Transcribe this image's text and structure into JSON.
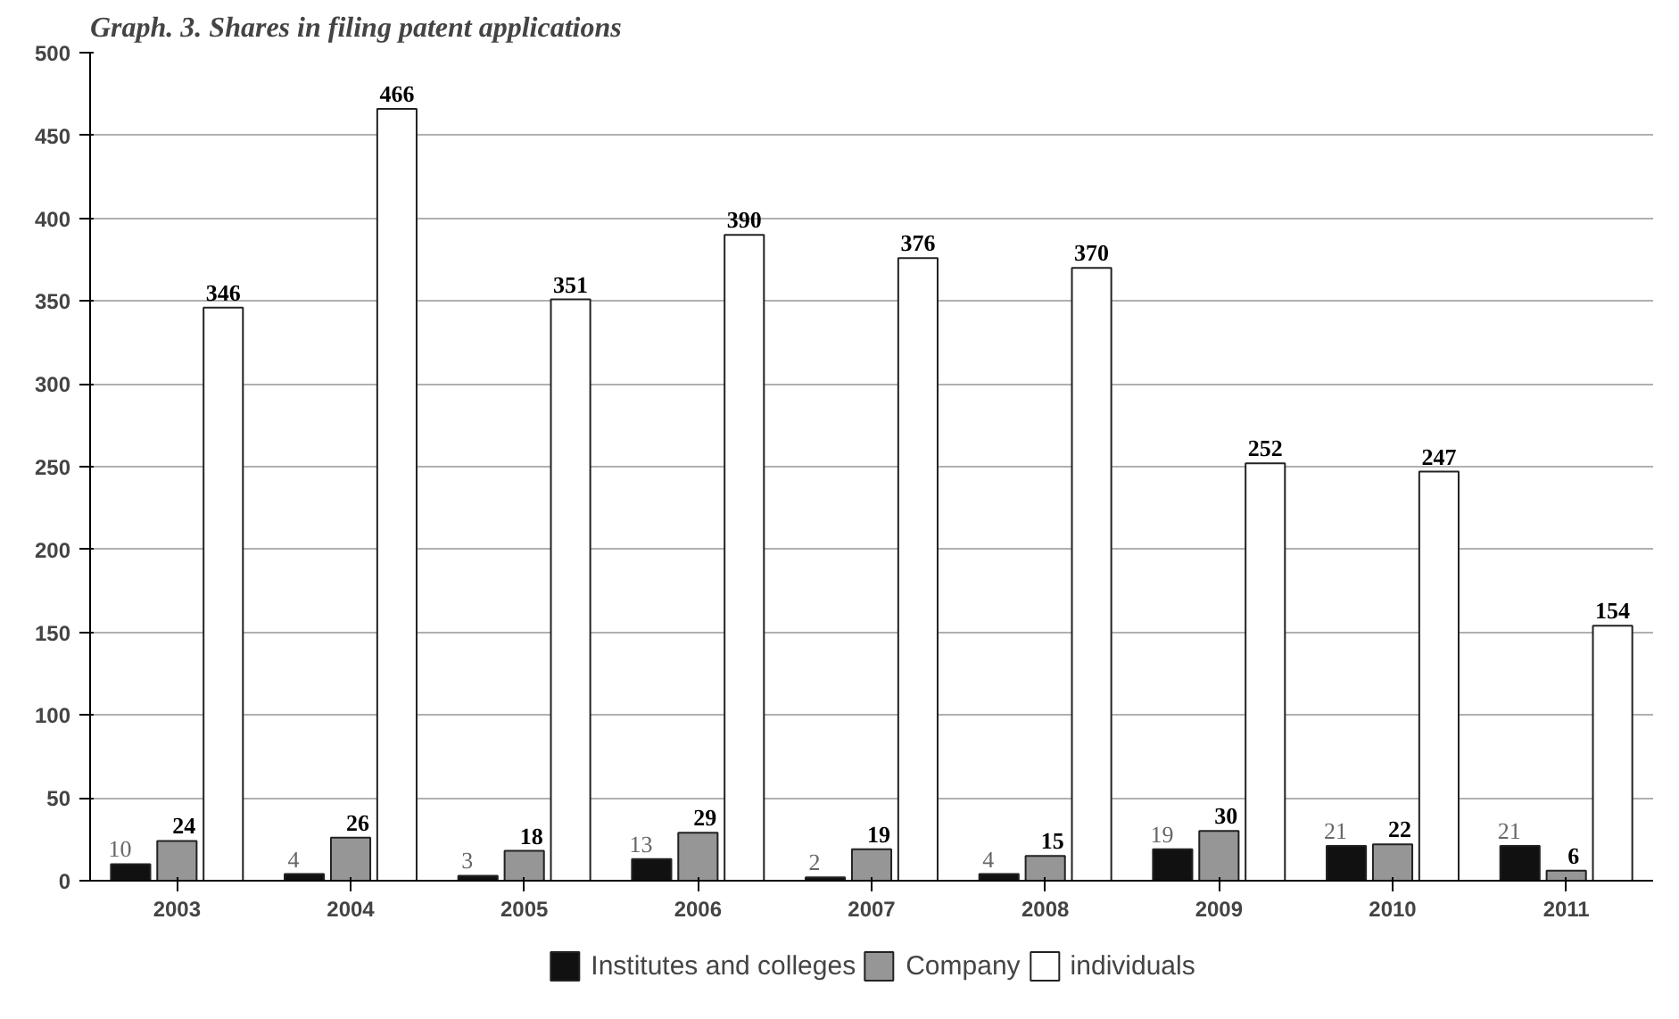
{
  "chart_data": {
    "type": "bar",
    "title": "Graph. 3. Shares in filing patent applications",
    "categories": [
      "2003",
      "2004",
      "2005",
      "2006",
      "2007",
      "2008",
      "2009",
      "2010",
      "2011"
    ],
    "series": [
      {
        "name": "Institutes and colleges",
        "color": "#111111",
        "values": [
          10,
          4,
          3,
          13,
          2,
          4,
          19,
          21,
          21
        ]
      },
      {
        "name": "Company",
        "color": "#969696",
        "values": [
          24,
          26,
          18,
          29,
          19,
          15,
          30,
          22,
          6
        ]
      },
      {
        "name": "individuals",
        "color": "#ffffff",
        "values": [
          346,
          466,
          351,
          390,
          376,
          370,
          252,
          247,
          154
        ]
      }
    ],
    "ylim": [
      0,
      500
    ],
    "yticks": [
      0,
      50,
      100,
      150,
      200,
      250,
      300,
      350,
      400,
      450,
      500
    ],
    "grid": "y",
    "legend": "bottom",
    "data_labels": true
  }
}
